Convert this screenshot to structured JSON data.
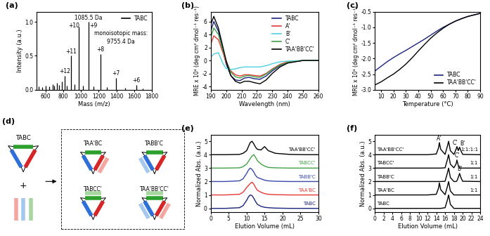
{
  "chart_data": [
    {
      "panel": "(a)",
      "type": "stem",
      "xlabel": "Mass (m/z)",
      "ylabel": "Intensity (a.u.)",
      "xlim": [
        500,
        1800
      ],
      "xticks": [
        600,
        800,
        1000,
        1200,
        1400,
        1600,
        1800
      ],
      "ylim": [
        0,
        1.15
      ],
      "yticks": [
        0.0,
        0.5,
        1.0
      ],
      "legend": "upper right",
      "series": [
        {
          "name": "TABC",
          "color": "#000000",
          "x": [
            520,
            560,
            600,
            640,
            680,
            700,
            730,
            750,
            780,
            814,
            840,
            888,
            930,
            976.5,
            1020,
            1085.5,
            1140,
            1221,
            1290,
            1395,
            1500,
            1627,
            1700
          ],
          "values": [
            0.05,
            0.04,
            0.06,
            0.05,
            0.08,
            0.06,
            0.1,
            0.07,
            0.12,
            0.2,
            0.06,
            0.5,
            0.08,
            0.93,
            0.06,
            1.0,
            0.05,
            0.53,
            0.04,
            0.17,
            0.03,
            0.07,
            0.02
          ]
        }
      ],
      "annotations": [
        {
          "text": "1085.5 Da",
          "x": 1085.5,
          "y": 1.01
        },
        {
          "text": "+10",
          "x": 920,
          "y": 0.9
        },
        {
          "text": "+9",
          "x": 1140,
          "y": 0.9
        },
        {
          "text": "+11",
          "x": 888,
          "y": 0.52
        },
        {
          "text": "+8",
          "x": 1221,
          "y": 0.55
        },
        {
          "text": "+12",
          "x": 814,
          "y": 0.22
        },
        {
          "text": "+7",
          "x": 1395,
          "y": 0.19
        },
        {
          "text": "+6",
          "x": 1627,
          "y": 0.09
        },
        {
          "text": "monoisotopic mass:",
          "x": 1450,
          "y": 0.78
        },
        {
          "text": "9755.4 Da",
          "x": 1450,
          "y": 0.66
        }
      ]
    },
    {
      "panel": "(b)",
      "type": "line",
      "xlabel": "Wavelength (nm)",
      "ylabel": "MRE x 10⁴ (deg cm² dmol⁻¹ res⁻¹)",
      "xlim": [
        190,
        260
      ],
      "xticks": [
        190,
        200,
        210,
        220,
        230,
        240,
        250,
        260
      ],
      "ylim": [
        -4.5,
        7.5
      ],
      "yticks": [
        -4,
        -2,
        0,
        2,
        4,
        6
      ],
      "legend": "upper right",
      "x": [
        190,
        192,
        195,
        198,
        200,
        203,
        206,
        209,
        212,
        215,
        218,
        222,
        226,
        230,
        235,
        240,
        250,
        260
      ],
      "series": [
        {
          "name": "TABC",
          "color": "#1a237e",
          "values": [
            4.5,
            6.0,
            4.5,
            1.5,
            -0.5,
            -2.3,
            -3.0,
            -3.1,
            -2.7,
            -2.6,
            -2.8,
            -2.9,
            -2.4,
            -1.6,
            -0.8,
            -0.3,
            0,
            0
          ]
        },
        {
          "name": "A'",
          "color": "#e53935",
          "values": [
            2.5,
            3.8,
            3.2,
            1.2,
            -0.3,
            -1.6,
            -2.2,
            -2.4,
            -2.2,
            -2.2,
            -2.3,
            -2.4,
            -2.0,
            -1.3,
            -0.6,
            -0.2,
            0,
            0
          ]
        },
        {
          "name": "B'",
          "color": "#4dd0e1",
          "values": [
            0.5,
            1.0,
            1.2,
            -0.5,
            -1.2,
            -1.4,
            -1.3,
            -1.1,
            -1.0,
            -1.0,
            -1.0,
            -1.0,
            -0.8,
            -0.5,
            -0.2,
            -0.1,
            0,
            0
          ]
        },
        {
          "name": "C'",
          "color": "#43a047",
          "values": [
            3.5,
            5.0,
            4.0,
            1.5,
            0.0,
            -1.8,
            -2.5,
            -2.7,
            -2.4,
            -2.3,
            -2.5,
            -2.6,
            -2.1,
            -1.4,
            -0.7,
            -0.3,
            0,
            0
          ]
        },
        {
          "name": "TAA'BB'CC'",
          "color": "#000000",
          "values": [
            5.5,
            6.8,
            5.0,
            2.0,
            0.0,
            -2.3,
            -3.2,
            -3.5,
            -3.2,
            -3.2,
            -3.4,
            -3.6,
            -3.0,
            -2.0,
            -1.0,
            -0.4,
            0,
            0
          ]
        }
      ]
    },
    {
      "panel": "(c)",
      "type": "line",
      "xlabel": "Temperature (°C)",
      "ylabel": "MRE x 10⁴ (deg cm² dmol⁻¹ res⁻¹)",
      "xlim": [
        5,
        90
      ],
      "xticks": [
        10,
        20,
        30,
        40,
        50,
        60,
        70,
        80,
        90
      ],
      "ylim": [
        -3.0,
        -0.5
      ],
      "yticks": [
        -3.0,
        -2.5,
        -2.0,
        -1.5,
        -1.0,
        -0.5
      ],
      "legend": "lower right",
      "x": [
        5,
        10,
        15,
        20,
        25,
        30,
        35,
        40,
        45,
        50,
        55,
        60,
        65,
        70,
        75,
        80,
        85,
        90
      ],
      "series": [
        {
          "name": "TABC",
          "color": "#1a237e",
          "values": [
            -2.4,
            -2.25,
            -2.1,
            -1.97,
            -1.85,
            -1.74,
            -1.62,
            -1.5,
            -1.38,
            -1.25,
            -1.12,
            -1.0,
            -0.9,
            -0.8,
            -0.72,
            -0.65,
            -0.6,
            -0.55
          ]
        },
        {
          "name": "TAA'BB'CC'",
          "color": "#000000",
          "values": [
            -2.85,
            -2.75,
            -2.62,
            -2.5,
            -2.35,
            -2.18,
            -1.98,
            -1.76,
            -1.55,
            -1.35,
            -1.18,
            -1.03,
            -0.9,
            -0.8,
            -0.72,
            -0.65,
            -0.6,
            -0.55
          ]
        }
      ]
    },
    {
      "panel": "(e)",
      "type": "line",
      "xlabel": "Elution Volume (mL)",
      "ylabel": "Normalized Abs. (a.u.)",
      "xlim": [
        0,
        30
      ],
      "xticks": [
        0,
        5,
        10,
        15,
        20,
        25,
        30
      ],
      "ylim": [
        -0.3,
        5.5
      ],
      "yticks": [
        0,
        1,
        2,
        3,
        4,
        5
      ],
      "x": [
        0,
        4,
        8,
        9,
        10,
        10.5,
        11,
        11.5,
        12,
        12.5,
        13,
        14,
        15,
        16,
        18,
        22,
        26,
        30
      ],
      "series": [
        {
          "name": "TABC",
          "color": "#1a237e",
          "values": [
            0,
            0,
            0.05,
            0.2,
            0.6,
            0.85,
            1.0,
            0.95,
            0.75,
            0.5,
            0.3,
            0.15,
            0.08,
            0.05,
            0.02,
            0,
            0,
            0
          ]
        },
        {
          "name": "TAA'BC",
          "color": "#e53935",
          "values": [
            1.0,
            1.0,
            1.05,
            1.2,
            1.55,
            1.7,
            1.85,
            1.95,
            1.8,
            1.55,
            1.35,
            1.2,
            1.1,
            1.05,
            1.02,
            1,
            1,
            1
          ]
        },
        {
          "name": "TABB'C",
          "color": "#3949ab",
          "values": [
            2,
            2,
            2.05,
            2.2,
            2.6,
            2.85,
            3.0,
            2.9,
            2.7,
            2.45,
            2.3,
            2.2,
            2.1,
            2.05,
            2.02,
            2,
            2,
            2
          ]
        },
        {
          "name": "TABCC'",
          "color": "#43a047",
          "values": [
            3,
            3,
            3.02,
            3.1,
            3.3,
            3.5,
            3.7,
            3.9,
            4.0,
            3.8,
            3.55,
            3.3,
            3.15,
            3.05,
            3.02,
            3,
            3,
            3
          ]
        },
        {
          "name": "TAA'BB'CC'",
          "color": "#000000",
          "values": [
            4,
            4,
            4.02,
            4.1,
            4.3,
            4.6,
            4.9,
            5.0,
            4.8,
            4.55,
            4.4,
            4.35,
            4.6,
            4.3,
            4.1,
            4.02,
            4,
            4
          ]
        }
      ]
    },
    {
      "panel": "(f)",
      "type": "line",
      "xlabel": "Elution Volume (mL)",
      "ylabel": "Normalized Abs. (a.u.)",
      "xlim": [
        0,
        24
      ],
      "xticks": [
        0,
        2,
        4,
        6,
        8,
        10,
        12,
        14,
        16,
        18,
        20,
        22,
        24
      ],
      "ylim": [
        -0.3,
        5.5
      ],
      "yticks": [
        0,
        1,
        2,
        3,
        4,
        5
      ],
      "x": [
        0,
        4,
        8,
        12,
        14,
        14.5,
        14.7,
        15,
        16,
        16.5,
        16.8,
        17.2,
        18,
        18.5,
        18.7,
        19,
        19.3,
        19.6,
        20,
        24
      ],
      "series": [
        {
          "name": "TABC",
          "color": "#000000",
          "values": [
            0,
            0,
            0,
            0,
            0,
            0,
            0,
            0,
            0.05,
            0.6,
            1.0,
            0.3,
            0,
            0,
            0,
            0,
            0,
            0,
            0,
            0
          ]
        },
        {
          "name": "TAA'BC",
          "color": "#000000",
          "ratio": "1:1",
          "values": [
            1,
            1,
            1,
            1,
            1.05,
            1.5,
            1.9,
            1.4,
            1.02,
            1.6,
            2.0,
            1.3,
            1,
            1,
            1,
            1,
            1,
            1,
            1,
            1
          ]
        },
        {
          "name": "TABB'C",
          "color": "#000000",
          "ratio": "1:1",
          "values": [
            2,
            2,
            2,
            2,
            2,
            2,
            2,
            2,
            2.02,
            2.6,
            3.0,
            2.3,
            2,
            2,
            2.05,
            2.3,
            2.6,
            2.3,
            2.02,
            2
          ]
        },
        {
          "name": "TABCC'",
          "color": "#000000",
          "ratio": "1:1",
          "values": [
            3,
            3,
            3,
            3,
            3,
            3,
            3,
            3,
            3.02,
            3.6,
            4.0,
            3.3,
            3.02,
            3.3,
            3.6,
            3.2,
            3,
            3,
            3,
            3
          ]
        },
        {
          "name": "TAA'BB'CC'",
          "color": "#000000",
          "ratio": "1:1:1:1",
          "values": [
            4,
            4,
            4,
            4,
            4.05,
            4.5,
            4.9,
            4.4,
            4.02,
            4.6,
            5.0,
            4.3,
            4.02,
            4.4,
            4.6,
            4.3,
            4.55,
            4.3,
            4.02,
            4
          ]
        }
      ],
      "annotations": [
        {
          "text": "A'",
          "x": 14.7,
          "y": 4.95
        },
        {
          "text": "C'",
          "x": 18.2,
          "y": 4.65
        },
        {
          "text": "B'",
          "x": 19.9,
          "y": 4.6
        },
        {
          "text": "C'",
          "x": 18.7,
          "y": 3.7
        },
        {
          "text": "B'",
          "x": 19.3,
          "y": 2.7
        }
      ]
    }
  ],
  "diagram": {
    "panel": "(d)",
    "template": "TABC",
    "plus": "+",
    "products": [
      "TAA'BC",
      "TABB'C",
      "TABCC'",
      "TAA'BB'CC'"
    ]
  }
}
